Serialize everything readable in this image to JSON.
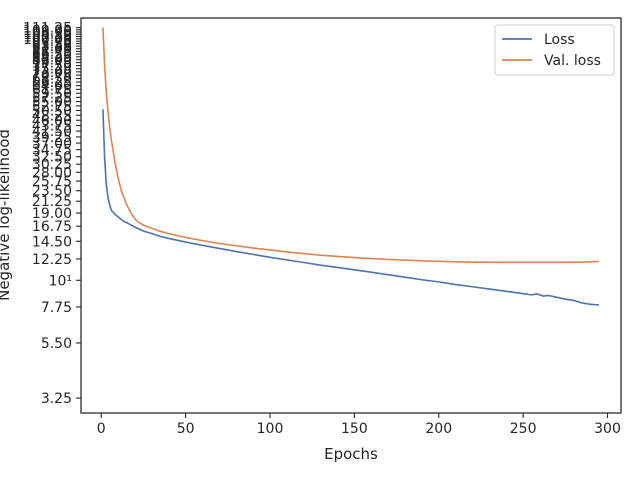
{
  "chart_data": {
    "type": "line",
    "title": "",
    "xlabel": "Epochs",
    "ylabel": "Negative log-likelihood",
    "xlim": [
      -12,
      308
    ],
    "ylim": [
      2.82,
      122
    ],
    "yscale": "log",
    "grid": false,
    "legend_position": "upper-right",
    "x_ticks": [
      0,
      50,
      100,
      150,
      200,
      250,
      300
    ],
    "x_tick_labels": [
      "0",
      "50",
      "100",
      "150",
      "200",
      "250",
      "300"
    ],
    "y_ticks": [
      3.25,
      5.5,
      7.75,
      10,
      12.25,
      14.5,
      16.75,
      19,
      21.25,
      23.5,
      25.75,
      28,
      30.25,
      32.5,
      34.75,
      37,
      39.25,
      41.5,
      43.75,
      46,
      48.25,
      50.5,
      52.75,
      55,
      57.25,
      59.5,
      61.75,
      64,
      66.25,
      68.5,
      70.75,
      73,
      75.25,
      77.5,
      79.75,
      82,
      84.25,
      86.5,
      88.75,
      91,
      93.25,
      95.5,
      97.75,
      100,
      102.25,
      104.5,
      106.75,
      109,
      111.25
    ],
    "y_tick_labels": [
      "3.25",
      "5.50",
      "7.75",
      "10¹",
      "12.25",
      "14.50",
      "16.75",
      "19.00",
      "21.25",
      "23.50",
      "25.75",
      "28.00",
      "30.25",
      "32.50",
      "34.75",
      "37.00",
      "39.25",
      "41.50",
      "43.75",
      "46.00",
      "48.25",
      "50.50",
      "52.75",
      "55.00",
      "57.25",
      "59.50",
      "61.75",
      "64.00",
      "66.25",
      "68.50",
      "70.75",
      "73.00",
      "75.25",
      "77.50",
      "79.75",
      "82.00",
      "84.25",
      "86.50",
      "88.75",
      "91.00",
      "93.25",
      "95.50",
      "97.75",
      "100.00",
      "102.25",
      "104.50",
      "106.75",
      "109.00",
      "111.25"
    ],
    "series": [
      {
        "name": "Loss",
        "color": "#4c72b0",
        "x": [
          1,
          2,
          3,
          4,
          5,
          6,
          8,
          10,
          13,
          16,
          20,
          25,
          30,
          35,
          40,
          50,
          60,
          70,
          80,
          90,
          100,
          110,
          120,
          130,
          140,
          150,
          160,
          170,
          180,
          190,
          200,
          210,
          220,
          230,
          240,
          250,
          255,
          258,
          262,
          265,
          270,
          275,
          280,
          285,
          290,
          295
        ],
        "y": [
          51,
          32,
          25,
          22,
          20.5,
          19.5,
          18.8,
          18.3,
          17.6,
          17.2,
          16.6,
          16.0,
          15.6,
          15.2,
          14.9,
          14.4,
          13.95,
          13.55,
          13.15,
          12.8,
          12.45,
          12.15,
          11.85,
          11.55,
          11.3,
          11.05,
          10.8,
          10.55,
          10.3,
          10.05,
          9.85,
          9.6,
          9.4,
          9.2,
          9.0,
          8.8,
          8.7,
          8.78,
          8.6,
          8.65,
          8.5,
          8.35,
          8.25,
          8.05,
          7.95,
          7.9
        ]
      },
      {
        "name": "Val. loss",
        "color": "#dd8452",
        "x": [
          1,
          2,
          3,
          4,
          5,
          6,
          7,
          8,
          10,
          12,
          15,
          18,
          21,
          25,
          30,
          35,
          40,
          50,
          60,
          70,
          80,
          90,
          100,
          110,
          120,
          130,
          140,
          150,
          160,
          170,
          180,
          190,
          200,
          210,
          220,
          230,
          240,
          250,
          260,
          270,
          280,
          285,
          290,
          295
        ],
        "y": [
          111.5,
          77,
          60,
          50,
          43,
          38,
          34.5,
          31,
          26.5,
          23.4,
          20.6,
          18.8,
          17.6,
          16.9,
          16.4,
          15.95,
          15.6,
          15.05,
          14.6,
          14.2,
          13.9,
          13.6,
          13.35,
          13.1,
          12.9,
          12.7,
          12.55,
          12.42,
          12.3,
          12.2,
          12.12,
          12.04,
          11.98,
          11.93,
          11.9,
          11.88,
          11.87,
          11.87,
          11.87,
          11.87,
          11.88,
          11.9,
          11.93,
          11.96
        ]
      }
    ]
  }
}
